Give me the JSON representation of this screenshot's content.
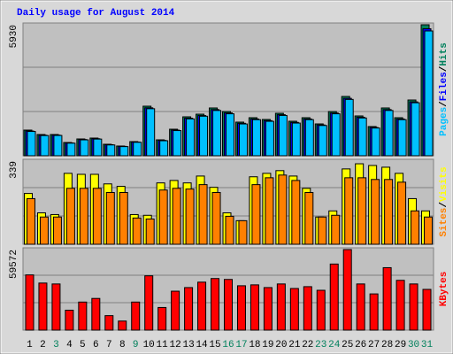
{
  "chart_data": {
    "type": "bar",
    "title": "Daily usage for August 2014",
    "categories": [
      "1",
      "2",
      "3",
      "4",
      "5",
      "6",
      "7",
      "8",
      "9",
      "10",
      "11",
      "12",
      "13",
      "14",
      "15",
      "16",
      "17",
      "18",
      "19",
      "20",
      "21",
      "22",
      "23",
      "24",
      "25",
      "26",
      "27",
      "28",
      "29",
      "30",
      "31"
    ],
    "category_colors": [
      "#000000",
      "#000000",
      "#00805c",
      "#000000",
      "#000000",
      "#000000",
      "#000000",
      "#000000",
      "#00805c",
      "#000000",
      "#000000",
      "#000000",
      "#000000",
      "#000000",
      "#000000",
      "#00805c",
      "#00805c",
      "#000000",
      "#000000",
      "#000000",
      "#000000",
      "#000000",
      "#00805c",
      "#00805c",
      "#000000",
      "#000000",
      "#000000",
      "#000000",
      "#000000",
      "#00805c",
      "#00805c"
    ],
    "legend_separator": "/",
    "grid": true,
    "panels": [
      {
        "ylim": [
          0,
          5930
        ],
        "yticks": [
          5930
        ],
        "series": [
          {
            "name": "Hits",
            "color": "#00805c",
            "values": [
              1162,
              962,
              962,
              601,
              761,
              801,
              521,
              441,
              641,
              2244,
              721,
              1202,
              1763,
              1883,
              2164,
              2003,
              1523,
              1723,
              1643,
              1923,
              1563,
              1723,
              1442,
              2003,
              2685,
              1803,
              1322,
              2164,
              1723,
              2524,
              5930
            ]
          },
          {
            "name": "Files",
            "color": "#0000ff",
            "values": [
              1120,
              930,
              935,
              580,
              735,
              770,
              500,
              425,
              620,
              2170,
              695,
              1160,
              1700,
              1820,
              2090,
              1940,
              1470,
              1665,
              1590,
              1860,
              1510,
              1665,
              1395,
              1935,
              2600,
              1745,
              1280,
              2090,
              1665,
              2440,
              5750
            ]
          },
          {
            "name": "Pages",
            "color": "#00c0ff",
            "values": [
              1100,
              915,
              920,
              570,
              720,
              755,
              490,
              415,
              610,
              2130,
              680,
              1140,
              1670,
              1790,
              2050,
              1900,
              1440,
              1635,
              1560,
              1825,
              1480,
              1635,
              1370,
              1900,
              2550,
              1710,
              1255,
              2050,
              1635,
              2400,
              5650
            ]
          }
        ]
      },
      {
        "ylim": [
          0,
          339
        ],
        "yticks": [
          339
        ],
        "series": [
          {
            "name": "Visits",
            "color": "#ffff00",
            "values": [
              207,
              128,
              121,
              289,
              285,
              285,
              246,
              236,
              121,
              118,
              250,
              260,
              250,
              278,
              232,
              128,
              96,
              275,
              289,
              300,
              278,
              228,
              111,
              136,
              307,
              328,
              321,
              314,
              289,
              186,
              136
            ]
          },
          {
            "name": "Sites",
            "color": "#ff8000",
            "values": [
              186,
              111,
              111,
              228,
              228,
              228,
              211,
              211,
              107,
              103,
              221,
              228,
              225,
              243,
              211,
              114,
              96,
              243,
              271,
              282,
              260,
              211,
              111,
              118,
              271,
              271,
              264,
              264,
              253,
              136,
              111
            ]
          }
        ]
      },
      {
        "ylim": [
          0,
          59572
        ],
        "yticks": [
          59572
        ],
        "series": [
          {
            "name": "KBytes",
            "color": "#ff0000",
            "values": [
              40830,
              34806,
              34137,
              14726,
              20750,
              23427,
              10710,
              6694,
              20750,
              40161,
              16734,
              28782,
              31459,
              35475,
              38153,
              37483,
              32798,
              33467,
              31459,
              34137,
              30790,
              32129,
              29451,
              48863,
              59572,
              34137,
              26774,
              46185,
              36814,
              34137,
              30121
            ]
          }
        ]
      }
    ]
  }
}
